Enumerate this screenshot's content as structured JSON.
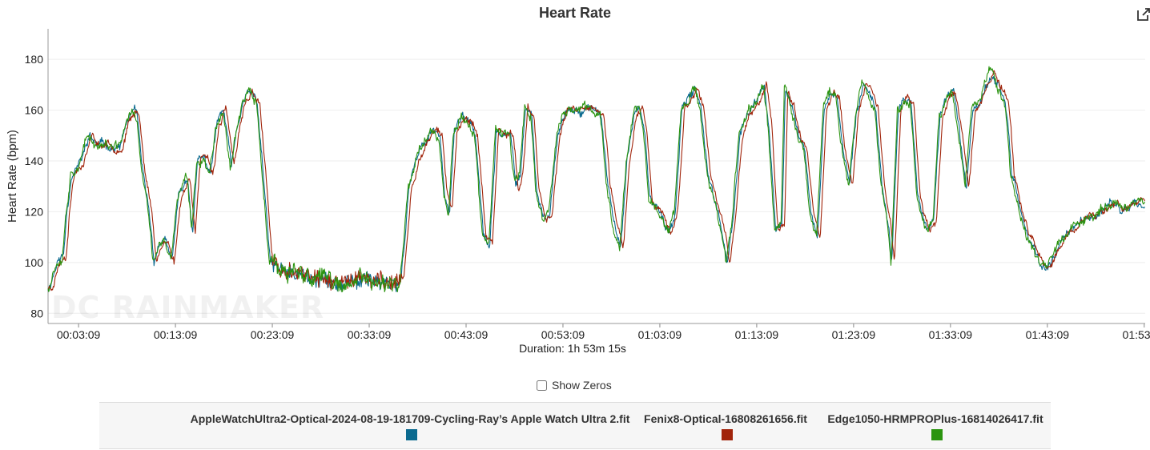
{
  "chart_data": {
    "type": "line",
    "title": "Heart Rate",
    "ylabel": "Heart Rate (bpm)",
    "xlabel": "Duration: 1h 53m 15s",
    "ylim": [
      76,
      192
    ],
    "yticks": [
      80,
      100,
      120,
      140,
      160,
      180
    ],
    "xlim": [
      0,
      6795
    ],
    "xticks": [
      {
        "t": 189,
        "label": "00:03:09"
      },
      {
        "t": 789,
        "label": "00:13:09"
      },
      {
        "t": 1389,
        "label": "00:23:09"
      },
      {
        "t": 1989,
        "label": "00:33:09"
      },
      {
        "t": 2589,
        "label": "00:43:09"
      },
      {
        "t": 3189,
        "label": "00:53:09"
      },
      {
        "t": 3789,
        "label": "01:03:09"
      },
      {
        "t": 4389,
        "label": "01:13:09"
      },
      {
        "t": 4989,
        "label": "01:23:09"
      },
      {
        "t": 5589,
        "label": "01:33:09"
      },
      {
        "t": 6189,
        "label": "01:43:09"
      },
      {
        "t": 6789,
        "label": "01:53:09"
      }
    ],
    "grid": true,
    "legend_position": "bottom",
    "x_unit": "seconds",
    "profile": [
      [
        0,
        90
      ],
      [
        50,
        100
      ],
      [
        90,
        103
      ],
      [
        110,
        120
      ],
      [
        140,
        135
      ],
      [
        200,
        140
      ],
      [
        250,
        150
      ],
      [
        300,
        146
      ],
      [
        350,
        147
      ],
      [
        400,
        145
      ],
      [
        440,
        145
      ],
      [
        480,
        155
      ],
      [
        530,
        160
      ],
      [
        550,
        155
      ],
      [
        580,
        135
      ],
      [
        620,
        120
      ],
      [
        650,
        101
      ],
      [
        690,
        108
      ],
      [
        720,
        108
      ],
      [
        760,
        100
      ],
      [
        800,
        125
      ],
      [
        830,
        130
      ],
      [
        860,
        133
      ],
      [
        890,
        112
      ],
      [
        920,
        140
      ],
      [
        960,
        141
      ],
      [
        1000,
        135
      ],
      [
        1040,
        155
      ],
      [
        1080,
        160
      ],
      [
        1100,
        152
      ],
      [
        1130,
        138
      ],
      [
        1160,
        150
      ],
      [
        1200,
        163
      ],
      [
        1240,
        167
      ],
      [
        1260,
        166
      ],
      [
        1290,
        162
      ],
      [
        1320,
        140
      ],
      [
        1370,
        100
      ],
      [
        1420,
        98
      ],
      [
        1500,
        96
      ],
      [
        1600,
        94
      ],
      [
        1700,
        93
      ],
      [
        1800,
        92
      ],
      [
        1900,
        94
      ],
      [
        2000,
        93
      ],
      [
        2100,
        92
      ],
      [
        2180,
        93
      ],
      [
        2230,
        130
      ],
      [
        2280,
        141
      ],
      [
        2330,
        148
      ],
      [
        2380,
        153
      ],
      [
        2420,
        150
      ],
      [
        2450,
        127
      ],
      [
        2480,
        120
      ],
      [
        2510,
        152
      ],
      [
        2560,
        157
      ],
      [
        2610,
        155
      ],
      [
        2640,
        150
      ],
      [
        2690,
        110
      ],
      [
        2730,
        106
      ],
      [
        2770,
        152
      ],
      [
        2820,
        150
      ],
      [
        2860,
        150
      ],
      [
        2890,
        130
      ],
      [
        2920,
        135
      ],
      [
        2950,
        160
      ],
      [
        2990,
        157
      ],
      [
        3020,
        128
      ],
      [
        3060,
        117
      ],
      [
        3100,
        120
      ],
      [
        3150,
        150
      ],
      [
        3200,
        160
      ],
      [
        3260,
        160
      ],
      [
        3300,
        160
      ],
      [
        3340,
        161
      ],
      [
        3380,
        160
      ],
      [
        3420,
        158
      ],
      [
        3460,
        130
      ],
      [
        3500,
        115
      ],
      [
        3540,
        105
      ],
      [
        3580,
        140
      ],
      [
        3620,
        158
      ],
      [
        3660,
        162
      ],
      [
        3690,
        150
      ],
      [
        3720,
        125
      ],
      [
        3760,
        122
      ],
      [
        3800,
        117
      ],
      [
        3840,
        112
      ],
      [
        3880,
        120
      ],
      [
        3920,
        160
      ],
      [
        3960,
        164
      ],
      [
        4000,
        168
      ],
      [
        4040,
        160
      ],
      [
        4080,
        136
      ],
      [
        4120,
        125
      ],
      [
        4160,
        116
      ],
      [
        4200,
        100
      ],
      [
        4240,
        120
      ],
      [
        4280,
        150
      ],
      [
        4320,
        158
      ],
      [
        4380,
        163
      ],
      [
        4430,
        170
      ],
      [
        4460,
        153
      ],
      [
        4500,
        112
      ],
      [
        4540,
        116
      ],
      [
        4560,
        168
      ],
      [
        4600,
        162
      ],
      [
        4640,
        150
      ],
      [
        4680,
        145
      ],
      [
        4720,
        119
      ],
      [
        4760,
        110
      ],
      [
        4800,
        160
      ],
      [
        4840,
        167
      ],
      [
        4880,
        165
      ],
      [
        4920,
        143
      ],
      [
        4960,
        130
      ],
      [
        5000,
        160
      ],
      [
        5040,
        170
      ],
      [
        5080,
        168
      ],
      [
        5120,
        160
      ],
      [
        5160,
        130
      ],
      [
        5200,
        115
      ],
      [
        5220,
        100
      ],
      [
        5260,
        160
      ],
      [
        5300,
        165
      ],
      [
        5340,
        163
      ],
      [
        5380,
        127
      ],
      [
        5400,
        120
      ],
      [
        5440,
        113
      ],
      [
        5480,
        117
      ],
      [
        5520,
        158
      ],
      [
        5560,
        165
      ],
      [
        5600,
        168
      ],
      [
        5640,
        150
      ],
      [
        5680,
        130
      ],
      [
        5720,
        160
      ],
      [
        5760,
        163
      ],
      [
        5800,
        170
      ],
      [
        5840,
        175
      ],
      [
        5880,
        170
      ],
      [
        5920,
        165
      ],
      [
        5940,
        155
      ],
      [
        5960,
        135
      ],
      [
        5990,
        128
      ],
      [
        6020,
        118
      ],
      [
        6060,
        110
      ],
      [
        6100,
        106
      ],
      [
        6140,
        100
      ],
      [
        6180,
        98
      ],
      [
        6220,
        102
      ],
      [
        6260,
        108
      ],
      [
        6300,
        111
      ],
      [
        6340,
        113
      ],
      [
        6380,
        115
      ],
      [
        6420,
        117
      ],
      [
        6460,
        118
      ],
      [
        6500,
        120
      ],
      [
        6560,
        122
      ],
      [
        6600,
        124
      ],
      [
        6640,
        120
      ],
      [
        6680,
        122
      ],
      [
        6720,
        124
      ],
      [
        6760,
        125
      ],
      [
        6795,
        123
      ]
    ],
    "series": [
      {
        "name": "AppleWatchUltra2-Optical-2024-08-19-181709-Cycling-Ray’s Apple Watch Ultra 2.fit",
        "color": "#0b6a8f",
        "seed": 11,
        "lag": 6,
        "noise": 1.8
      },
      {
        "name": "Fenix8-Optical-16808261656.fit",
        "color": "#a1240b",
        "seed": 23,
        "lag": 22,
        "noise": 1.6
      },
      {
        "name": "Edge1050-HRMPROPlus-16814026417.fit",
        "color": "#2b9410",
        "seed": 37,
        "lag": 0,
        "noise": 2.2
      }
    ]
  },
  "ui": {
    "export_icon": "external-link-icon",
    "show_zeros_label": "Show Zeros",
    "show_zeros_checked": false,
    "watermark": "DC RAINMAKER"
  }
}
